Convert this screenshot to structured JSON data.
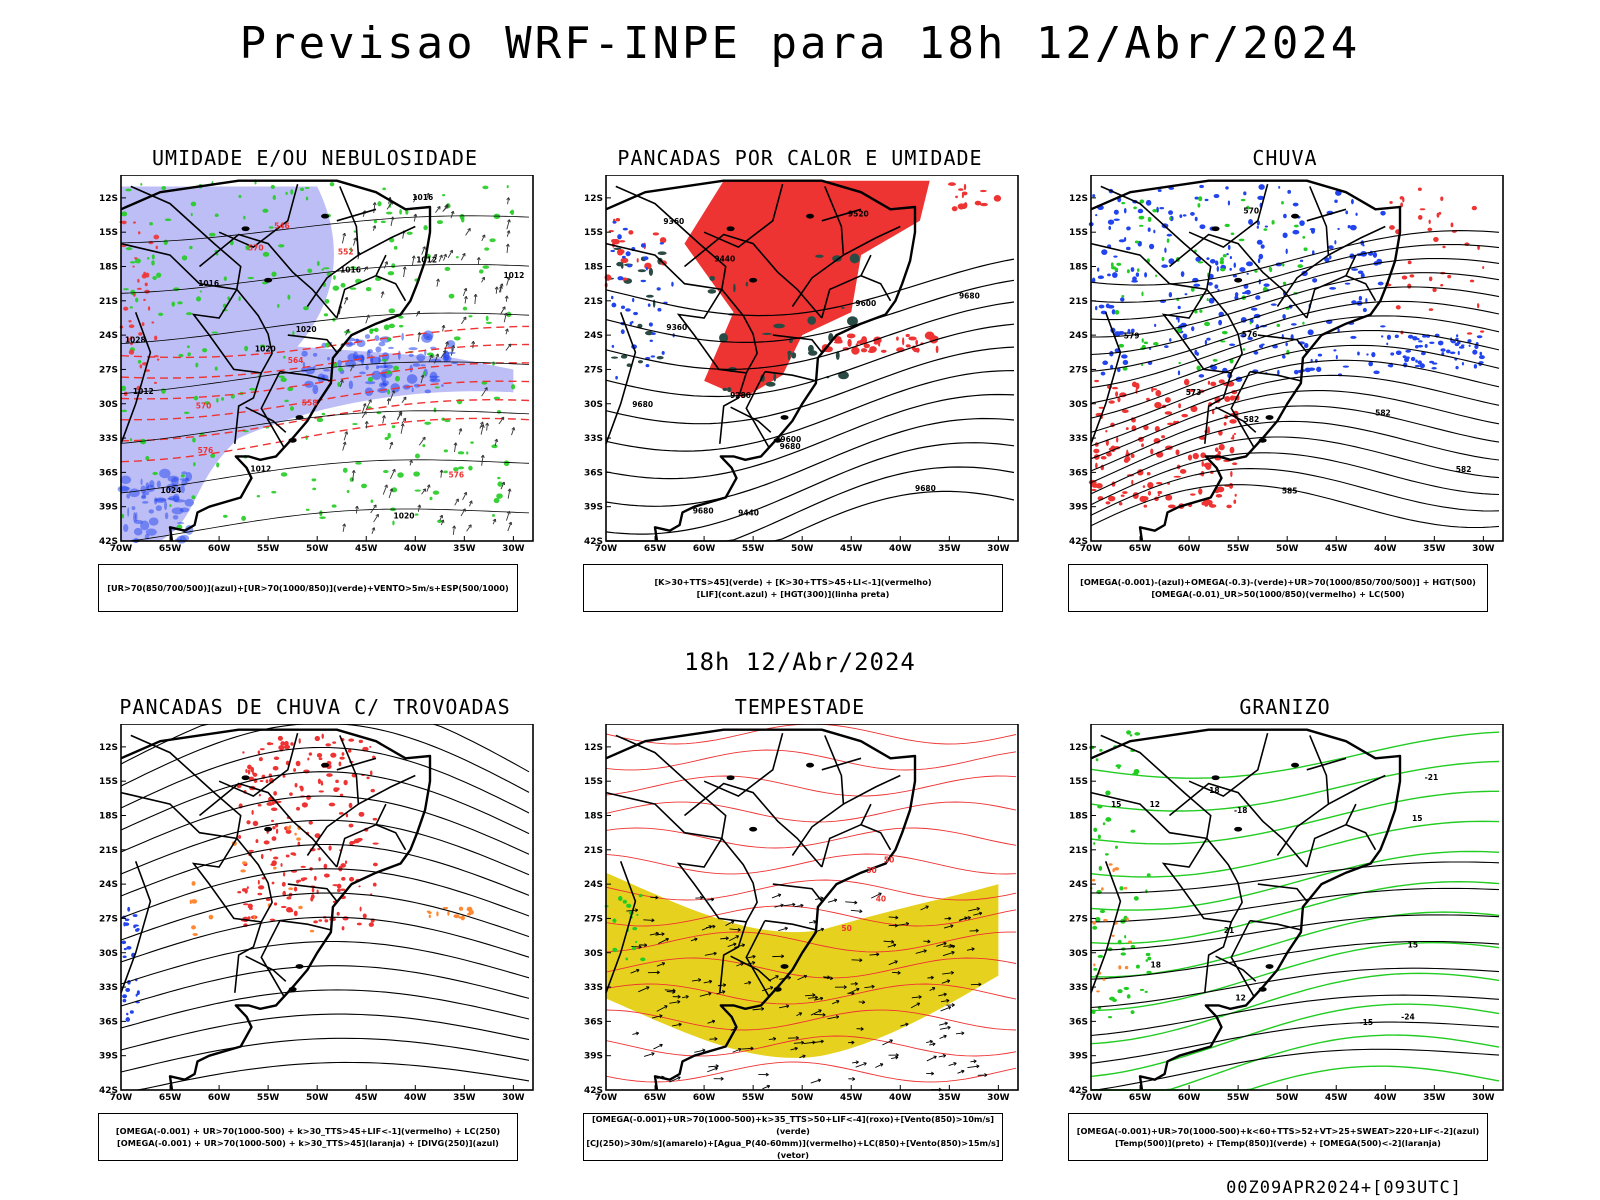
{
  "header": {
    "title": "Previsao WRF-INPE  para 18h 12/Abr/2024"
  },
  "mid_label": "18h 12/Abr/2024",
  "footer": "00Z09APR2024+[093UTC]",
  "axes": {
    "lat_ticks": [
      "12S",
      "15S",
      "18S",
      "21S",
      "24S",
      "27S",
      "30S",
      "33S",
      "36S",
      "39S",
      "42S"
    ],
    "lon_ticks": [
      "70W",
      "65W",
      "60W",
      "55W",
      "50W",
      "45W",
      "40W",
      "35W",
      "30W"
    ]
  },
  "colors": {
    "blue": "#2244ee",
    "lavender": "#b3b3f5",
    "green": "#22cc22",
    "red": "#ee3333",
    "orange": "#ff8833",
    "yellow": "#e6d21e",
    "darkgreen": "#2a4a44",
    "black": "#000000"
  },
  "chart_data": [
    {
      "type": "map",
      "title": "UMIDADE E/OU NEBULOSIDADE",
      "legend": [
        "[UR>70(850/700/500)](azul)+[UR>70(1000/850)](verde)+VENTO>5m/s+ESP(500/1000)"
      ],
      "contour_labels": [
        "1012",
        "1012",
        "1016",
        "1016",
        "1012",
        "1020",
        "1020",
        "1024",
        "1028",
        "1020",
        "1012",
        "1016"
      ],
      "thickness_labels": [
        "576",
        "570",
        "564",
        "558",
        "552",
        "546",
        "576",
        "570"
      ]
    },
    {
      "type": "map",
      "title": "PANCADAS POR CALOR E UMIDADE",
      "legend": [
        "[K>30+TTS>45](verde) + [K>30+TTS>45+LI<-1](vermelho)",
        "[LIF](cont.azul) + [HGT(300)](linha preta)"
      ],
      "contour_labels": [
        "9680",
        "9680",
        "9680",
        "9680",
        "9600",
        "9600",
        "9520",
        "9440",
        "9440",
        "9360",
        "9280",
        "9360",
        "9680"
      ]
    },
    {
      "type": "map",
      "title": "CHUVA",
      "legend": [
        "[OMEGA(-0.001)-(azul)+OMEGA(-0.3)-(verde)+UR>70(1000/850/700/500)] + HGT(500)",
        "[OMEGA(-0.01)_UR>50(1000/850)(vermelho) + LC(500)"
      ],
      "contour_labels": [
        "582",
        "582",
        "585",
        "576",
        "579",
        "573",
        "570",
        "582"
      ]
    },
    {
      "type": "map",
      "title": "PANCADAS DE CHUVA C/ TROVOADAS",
      "legend": [
        "[OMEGA(-0.001) + UR>70(1000-500) + k>30_TTS>45+LIF<-1](vermelho) + LC(250)",
        "[OMEGA(-0.001) + UR>70(1000-500) + k>30_TTS>45](laranja) + [DIVG(250)](azul)"
      ]
    },
    {
      "type": "map",
      "title": "TEMPESTADE",
      "legend": [
        "[OMEGA(-0.001)+UR>70(1000-500)+k>35_TTS>50+LIF<-4](roxo)+[Vento(850)>10m/s](verde)",
        "[CJ(250)>30m/s](amarelo)+[Agua_P(40-60mm)](vermelho)+LC(850)+[Vento(850)>15m/s](vetor)"
      ],
      "contour_labels": [
        "50",
        "50",
        "40",
        "30"
      ]
    },
    {
      "type": "map",
      "title": "GRANIZO",
      "legend": [
        "[OMEGA(-0.001)+UR>70(1000-500)+k<60+TTS>52+VT>25+SWEAT>220+LIF<-2](azul)",
        "[Temp(500)](preto) + [Temp(850)](verde) + [OMEGA(500)<-2](laranja)"
      ],
      "contour_labels": [
        "15",
        "15",
        "18",
        "12",
        "-15",
        "-18",
        "-24",
        "-21",
        "21",
        "18",
        "12",
        "15"
      ]
    }
  ]
}
